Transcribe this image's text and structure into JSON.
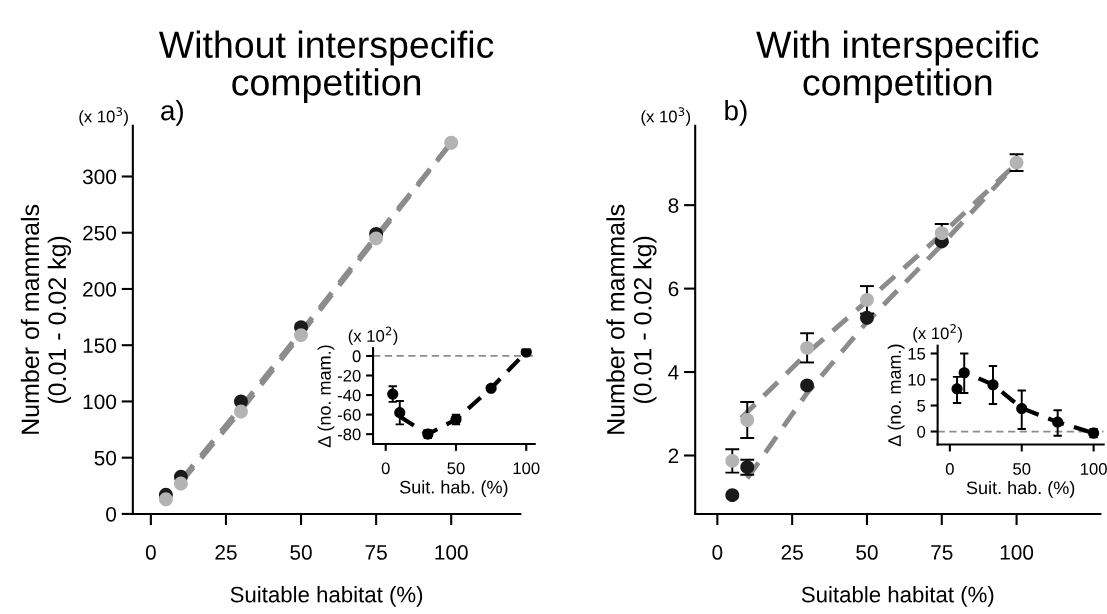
{
  "chart_data": [
    {
      "type": "scatter",
      "title": "Without interspecific\ncompetition",
      "xlabel": "Suitable habitat (%)",
      "ylabel": "Number of mammals\n(0.01 - 0.02 kg)",
      "annotations": [
        "a)",
        "(x 10$^{3}$)"
      ],
      "marker": "circle",
      "xlim": [
        -6,
        123
      ],
      "xticks": [
        0,
        25,
        50,
        75,
        100
      ],
      "ylim": [
        0,
        345
      ],
      "yticks": [
        0,
        50,
        100,
        150,
        200,
        250,
        300
      ],
      "series": [
        {
          "type": "line",
          "color": "#8c8c8c",
          "marker": "none",
          "line_style": "dashed",
          "x": [
            10,
            30,
            50,
            75,
            100
          ],
          "values": [
            30,
            95,
            162,
            247,
            330
          ]
        },
        {
          "type": "line",
          "color": "#8c8c8c",
          "marker": "none",
          "line_style": "dashed",
          "x": [
            10,
            30,
            50,
            75,
            100
          ],
          "values": [
            28,
            92,
            160,
            245,
            330
          ]
        },
        {
          "color": "#1a1a1a",
          "x": [
            5,
            10,
            30,
            50,
            75
          ],
          "values": [
            17,
            33,
            100,
            166,
            249
          ]
        },
        {
          "color": "#b3b3b3",
          "x": [
            5,
            10,
            30,
            50,
            75,
            100
          ],
          "values": [
            13,
            27,
            91,
            159,
            245,
            330
          ]
        }
      ]
    },
    {
      "type": "scatter",
      "xlabel": "Suit. hab. (%)",
      "ylabel": "Δ (no. mam.)",
      "annotations": [
        "(x 10$^{2}$)"
      ],
      "marker": "circle",
      "xlim": [
        -9,
        106
      ],
      "xticks": [
        0,
        50,
        100
      ],
      "ylim": [
        -90,
        8
      ],
      "yticks": [
        0,
        -20,
        -40,
        -60,
        -80
      ],
      "ref_lines": [
        {
          "axis": "y",
          "value": 0,
          "color": "#8c8c8c",
          "line_style": "dashed"
        }
      ],
      "series": [
        {
          "type": "line",
          "color": "#000000",
          "marker": "none",
          "line_style": "dashed",
          "x": [
            10,
            30,
            50,
            75,
            100
          ],
          "values": [
            -62,
            -80,
            -65,
            -33,
            4
          ]
        },
        {
          "color": "#000000",
          "x": [
            5,
            10,
            30,
            50,
            75,
            100
          ],
          "values": [
            -39,
            -58,
            -80,
            -65,
            -33,
            4
          ],
          "errors": [
            8,
            12,
            4,
            5,
            null,
            null
          ]
        }
      ]
    },
    {
      "type": "scatter",
      "title": "With interspecific\ncompetition",
      "xlabel": "Suitable habitat (%)",
      "ylabel": "Number of mammals\n(0.01 - 0.02 kg)",
      "annotations": [
        "b)",
        "(x 10$^{3}$)"
      ],
      "marker": "circle",
      "xlim": [
        -7.4,
        128
      ],
      "xticks": [
        0,
        25,
        50,
        75,
        100
      ],
      "ylim": [
        0.6,
        9.9
      ],
      "yticks": [
        2,
        4,
        6,
        8
      ],
      "series": [
        {
          "type": "line",
          "color": "#8c8c8c",
          "marker": "none",
          "line_style": "dashed",
          "x": [
            10,
            30,
            50,
            75,
            100
          ],
          "values": [
            1.45,
            3.5,
            5.2,
            7.05,
            9.0
          ]
        },
        {
          "type": "line",
          "color": "#8c8c8c",
          "marker": "none",
          "line_style": "dashed",
          "x": [
            8,
            30,
            50,
            75,
            100
          ],
          "values": [
            2.9,
            4.45,
            5.7,
            7.3,
            9.0
          ]
        },
        {
          "color": "#1a1a1a",
          "x": [
            5,
            10,
            30,
            50,
            75
          ],
          "values": [
            1.05,
            1.72,
            3.68,
            5.3,
            7.13
          ],
          "errors": [
            null,
            0.18,
            null,
            null,
            null
          ]
        },
        {
          "color": "#b3b3b3",
          "x": [
            5,
            10,
            30,
            50,
            75,
            100
          ],
          "values": [
            1.87,
            2.85,
            4.58,
            5.73,
            7.33,
            9.02
          ],
          "errors": [
            0.28,
            0.43,
            0.35,
            0.33,
            0.22,
            0.2
          ]
        }
      ]
    },
    {
      "type": "scatter",
      "xlabel": "Suit. hab. (%)",
      "ylabel": "Δ (no. mam.)",
      "annotations": [
        "(x 10$^{2}$)"
      ],
      "marker": "circle",
      "xlim": [
        -8.5,
        107
      ],
      "xticks": [
        0,
        50,
        100
      ],
      "ylim": [
        -2.5,
        16.5
      ],
      "yticks": [
        0,
        5,
        10,
        15
      ],
      "ref_lines": [
        {
          "axis": "y",
          "value": 0,
          "color": "#8c8c8c",
          "line_style": "dashed"
        }
      ],
      "series": [
        {
          "type": "line",
          "color": "#000000",
          "marker": "none",
          "line_style": "dashed",
          "x": [
            20,
            30,
            50,
            75,
            100
          ],
          "values": [
            10.2,
            9,
            4.5,
            1.8,
            -0.3
          ]
        },
        {
          "color": "#000000",
          "x": [
            5,
            10,
            30,
            50,
            75,
            100
          ],
          "values": [
            8.2,
            11.3,
            9,
            4.4,
            1.8,
            -0.3
          ],
          "errors": [
            [
              5.5,
              10.5
            ],
            [
              7.4,
              15
            ],
            [
              5.3,
              12.6
            ],
            [
              0.5,
              7.9
            ],
            [
              -0.8,
              4.1
            ],
            [
              -1.1,
              0.5
            ]
          ]
        }
      ]
    }
  ]
}
